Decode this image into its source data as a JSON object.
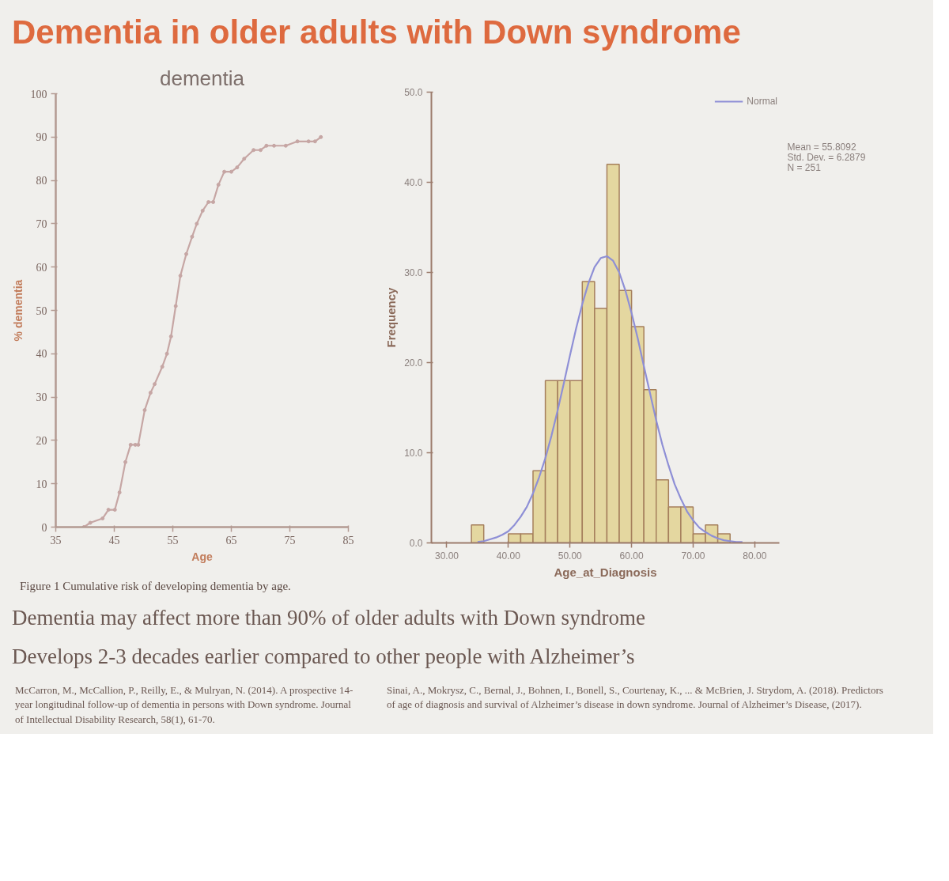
{
  "chart_data": [
    {
      "type": "other",
      "title": "Dementia in older adults with Down syndrome",
      "annotations": [
        "Dementia may affect more than 90% of older adults with Down syndrome",
        "Develops 2-3 decades earlier compared to other people with Alzheimer’s"
      ]
    },
    {
      "type": "line",
      "title": "dementia",
      "xlabel": "Age",
      "ylabel": "% dementia",
      "x": [
        39.8,
        40.9,
        43.0,
        44.0,
        45.1,
        45.9,
        46.9,
        47.8,
        48.6,
        49.1,
        50.2,
        51.2,
        51.9,
        53.2,
        54.0,
        54.7,
        55.5,
        56.3,
        57.3,
        58.3,
        59.1,
        60.1,
        61.1,
        61.9,
        62.8,
        63.8,
        65.0,
        66.0,
        67.2,
        68.8,
        70.0,
        71.0,
        72.3,
        74.3,
        76.3,
        78.2,
        79.3,
        80.3
      ],
      "series": [
        {
          "color": "#c6a6a4",
          "values": [
            0,
            1,
            2,
            4,
            4,
            8,
            15,
            19,
            19,
            19,
            27,
            31,
            33,
            37,
            40,
            44,
            51,
            58,
            63,
            67,
            70,
            73,
            75,
            75,
            79,
            82,
            82,
            83,
            85,
            87,
            87,
            88,
            88,
            88,
            89,
            89,
            89,
            90
          ]
        }
      ],
      "xlim": [
        35,
        85
      ],
      "ylim": [
        0,
        100
      ],
      "xticks": [
        35,
        45,
        55,
        65,
        75,
        85
      ],
      "yticks": [
        0,
        10,
        20,
        30,
        40,
        50,
        60,
        70,
        80,
        90,
        100
      ],
      "marker": "circle",
      "annotations": [
        "Figure 1 Cumulative risk of developing dementia by age.",
        "McCarron, M., McCallion, P., Reilly, E., & Mulryan, N. (2014). A prospective 14-year longitudinal follow-up of dementia in persons with Down syndrome. Journal of Intellectual Disability Research, 58(1), 61-70."
      ]
    },
    {
      "type": "histogram",
      "xlabel": "Age_at_Diagnosis",
      "ylabel": "Frequency",
      "bins": [
        34,
        36,
        38,
        40,
        42,
        44,
        46,
        48,
        50,
        52,
        54,
        56,
        58,
        60,
        62,
        64,
        66,
        68,
        70,
        72,
        74,
        76
      ],
      "series": [
        {
          "type": "histogram",
          "color": "#e4d7a0",
          "values": [
            2,
            0,
            0,
            1,
            1,
            8,
            18,
            18,
            18,
            29,
            26,
            42,
            28,
            24,
            17,
            7,
            4,
            4,
            1,
            2,
            1
          ]
        },
        {
          "type": "line",
          "name": "Normal",
          "color": "#8e8fd6",
          "x": [
            35,
            36,
            37,
            38,
            39,
            40,
            41,
            42,
            43,
            44,
            45,
            46,
            47,
            48,
            49,
            50,
            51,
            52,
            53,
            54,
            55,
            56,
            57,
            58,
            59,
            60,
            61,
            62,
            63,
            64,
            65,
            66,
            67,
            68,
            69,
            70,
            71,
            72,
            73,
            74,
            75,
            76,
            77,
            78
          ],
          "values": [
            0.1,
            0.2,
            0.4,
            0.6,
            0.9,
            1.3,
            2.0,
            2.9,
            4.0,
            5.5,
            7.3,
            9.4,
            11.9,
            14.7,
            17.7,
            20.8,
            23.8,
            26.5,
            28.8,
            30.6,
            31.6,
            31.8,
            31.3,
            30.0,
            28.0,
            25.5,
            22.7,
            19.6,
            16.6,
            13.6,
            10.9,
            8.6,
            6.5,
            4.9,
            3.5,
            2.5,
            1.7,
            1.2,
            0.8,
            0.5,
            0.3,
            0.2,
            0.1,
            0.1
          ]
        }
      ],
      "xlim": [
        27.5,
        84
      ],
      "ylim": [
        0,
        50
      ],
      "xticks": [
        {
          "value": 30,
          "label": "30.00"
        },
        {
          "value": 40,
          "label": "40.00"
        },
        {
          "value": 50,
          "label": "50.00"
        },
        {
          "value": 60,
          "label": "60.00"
        },
        {
          "value": 70,
          "label": "70.00"
        },
        {
          "value": 80,
          "label": "80.00"
        }
      ],
      "yticks": [
        {
          "value": 0,
          "label": "0.0"
        },
        {
          "value": 10,
          "label": "10.0"
        },
        {
          "value": 20,
          "label": "20.0"
        },
        {
          "value": 30,
          "label": "30.0"
        },
        {
          "value": 40,
          "label": "40.0"
        },
        {
          "value": 50,
          "label": "50.0"
        }
      ],
      "legend": "top right",
      "annotations": [
        "Mean = 55.8092",
        "Std. Dev. = 6.2879",
        "N = 251",
        "Sinai, A., Mokrysz, C., Bernal, J., Bohnen, I., Bonell, S., Courtenay, K., ... & McBrien, J. Strydom, A. (2018). Predictors of age of diagnosis and survival of Alzheimer’s disease in down syndrome. Journal of Alzheimer’s Disease, (2017)."
      ]
    }
  ]
}
